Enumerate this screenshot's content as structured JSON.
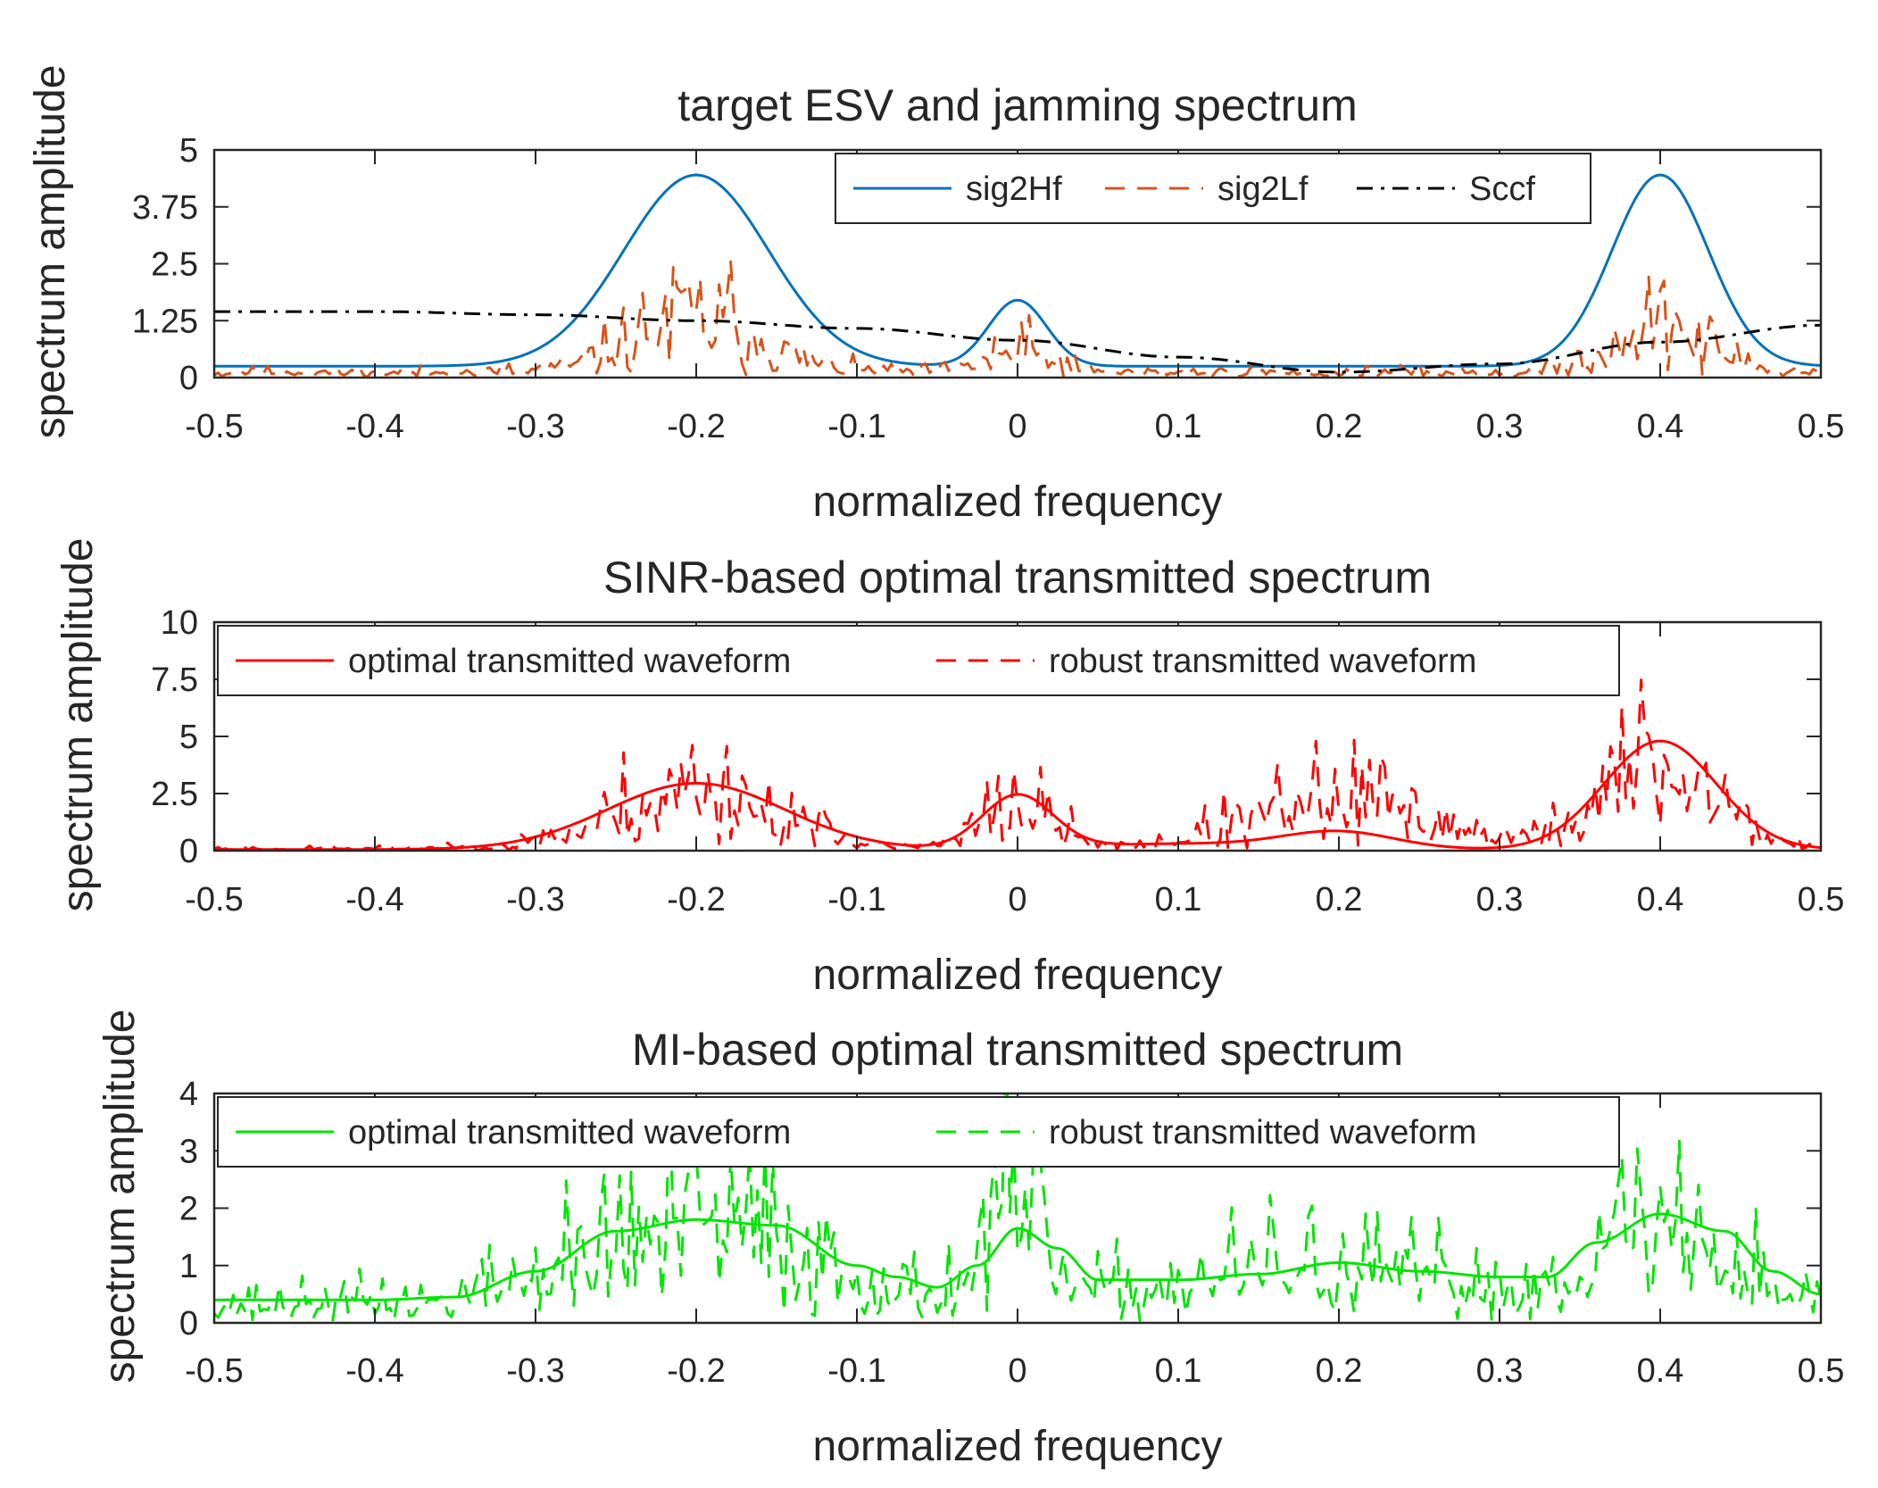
{
  "chart_data": [
    {
      "type": "line",
      "title": "target ESV and jamming spectrum",
      "xlabel": "normalized frequency",
      "ylabel": "spectrum amplitude",
      "xlim": [
        -0.5,
        0.5
      ],
      "ylim": [
        0,
        5
      ],
      "xticks": [
        -0.5,
        -0.4,
        -0.3,
        -0.2,
        -0.1,
        0,
        0.1,
        0.2,
        0.3,
        0.4,
        0.5
      ],
      "xtick_labels": [
        "-0.5",
        "-0.4",
        "-0.3",
        "-0.2",
        "-0.1",
        "0",
        "0.1",
        "0.2",
        "0.3",
        "0.4",
        "0.5"
      ],
      "yticks": [
        0,
        1.25,
        2.5,
        3.75,
        5
      ],
      "ytick_labels": [
        "0",
        "1.25",
        "2.5",
        "3.75",
        "5"
      ],
      "legend_position": "top-right",
      "legend_layout": "horizontal",
      "series": [
        {
          "name": "sig2Hf",
          "style": "solid",
          "color": "#0072BD",
          "model": {
            "base": 0.25,
            "peaks": [
              {
                "center": -0.2,
                "height": 4.2,
                "width": 0.045
              },
              {
                "center": 0,
                "height": 1.45,
                "width": 0.018
              },
              {
                "center": 0.4,
                "height": 4.2,
                "width": 0.03
              }
            ]
          }
        },
        {
          "name": "sig2Lf",
          "style": "dashed",
          "color": "#D95319",
          "noisy": true,
          "seed": 11,
          "model": {
            "base": 0.12,
            "peaks": [
              {
                "center": -0.2,
                "height": 1.2,
                "width": 0.04
              },
              {
                "center": 0,
                "height": 0.5,
                "width": 0.02
              },
              {
                "center": 0.4,
                "height": 1.0,
                "width": 0.03
              }
            ]
          }
        },
        {
          "name": "Sccf",
          "style": "dashdot",
          "color": "#000000",
          "x": [
            -0.5,
            -0.4,
            -0.3,
            -0.2,
            -0.1,
            0,
            0.1,
            0.2,
            0.3,
            0.4,
            0.5
          ],
          "values": [
            1.45,
            1.45,
            1.38,
            1.25,
            1.08,
            0.82,
            0.45,
            0.12,
            0.3,
            0.78,
            1.15
          ]
        }
      ]
    },
    {
      "type": "line",
      "title": "SINR-based optimal transmitted spectrum",
      "xlabel": "normalized frequency",
      "ylabel": "spectrum amplitude",
      "xlim": [
        -0.5,
        0.5
      ],
      "ylim": [
        0,
        10
      ],
      "xticks": [
        -0.5,
        -0.4,
        -0.3,
        -0.2,
        -0.1,
        0,
        0.1,
        0.2,
        0.3,
        0.4,
        0.5
      ],
      "xtick_labels": [
        "-0.5",
        "-0.4",
        "-0.3",
        "-0.2",
        "-0.1",
        "0",
        "0.1",
        "0.2",
        "0.3",
        "0.4",
        "0.5"
      ],
      "yticks": [
        0,
        2.5,
        5,
        7.5,
        10
      ],
      "ytick_labels": [
        "0",
        "2.5",
        "5",
        "7.5",
        "10"
      ],
      "legend_position": "top-left",
      "legend_layout": "horizontal",
      "series": [
        {
          "name": "optimal transmitted waveform",
          "style": "solid",
          "color": "#FF0000",
          "model": {
            "base": 0.05,
            "peaks": [
              {
                "center": -0.2,
                "height": 2.9,
                "width": 0.055
              },
              {
                "center": 0,
                "height": 2.35,
                "width": 0.022
              },
              {
                "center": 0.2,
                "height": 0.75,
                "width": 0.035
              },
              {
                "center": 0.4,
                "height": 4.75,
                "width": 0.035
              },
              {
                "center": 0.1,
                "height": 0.25,
                "width": 0.06
              }
            ]
          }
        },
        {
          "name": "robust transmitted waveform",
          "style": "dashed",
          "color": "#FF0000",
          "noisy": true,
          "seed": 23,
          "model": {
            "base": 0.1,
            "peaks": [
              {
                "center": -0.2,
                "height": 2.6,
                "width": 0.05
              },
              {
                "center": 0,
                "height": 2.0,
                "width": 0.022
              },
              {
                "center": 0.2,
                "height": 2.0,
                "width": 0.06
              },
              {
                "center": 0.4,
                "height": 3.8,
                "width": 0.035
              }
            ]
          }
        }
      ]
    },
    {
      "type": "line",
      "title": "MI-based optimal transmitted spectrum",
      "xlabel": "normalized frequency",
      "ylabel": "spectrum amplitude",
      "xlim": [
        -0.5,
        0.5
      ],
      "ylim": [
        0,
        4
      ],
      "xticks": [
        -0.5,
        -0.4,
        -0.3,
        -0.2,
        -0.1,
        0,
        0.1,
        0.2,
        0.3,
        0.4,
        0.5
      ],
      "xtick_labels": [
        "-0.5",
        "-0.4",
        "-0.3",
        "-0.2",
        "-0.1",
        "0",
        "0.1",
        "0.2",
        "0.3",
        "0.4",
        "0.5"
      ],
      "yticks": [
        0,
        1,
        2,
        3,
        4
      ],
      "ytick_labels": [
        "0",
        "1",
        "2",
        "3",
        "4"
      ],
      "legend_position": "top-left",
      "legend_layout": "horizontal",
      "series": [
        {
          "name": "optimal transmitted waveform",
          "style": "solid",
          "color": "#00E600",
          "x": [
            -0.5,
            -0.45,
            -0.4,
            -0.35,
            -0.3,
            -0.25,
            -0.2,
            -0.15,
            -0.1,
            -0.075,
            -0.05,
            -0.025,
            0,
            0.025,
            0.05,
            0.1,
            0.15,
            0.2,
            0.25,
            0.3,
            0.33,
            0.36,
            0.4,
            0.44,
            0.47,
            0.5
          ],
          "values": [
            0.4,
            0.4,
            0.4,
            0.45,
            0.9,
            1.6,
            1.8,
            1.7,
            1.0,
            0.8,
            0.62,
            1.0,
            1.65,
            1.3,
            0.75,
            0.75,
            0.85,
            1.05,
            0.9,
            0.8,
            0.8,
            1.4,
            1.9,
            1.6,
            0.9,
            0.5
          ]
        },
        {
          "name": "robust transmitted waveform",
          "style": "dashed",
          "color": "#00E600",
          "noisy": true,
          "seed": 37,
          "model": {
            "base": 0.35,
            "peaks": [
              {
                "center": -0.2,
                "height": 1.4,
                "width": 0.07
              },
              {
                "center": 0,
                "height": 1.5,
                "width": 0.02
              },
              {
                "center": 0.18,
                "height": 0.6,
                "width": 0.08
              },
              {
                "center": 0.4,
                "height": 1.5,
                "width": 0.04
              }
            ]
          }
        }
      ]
    }
  ]
}
